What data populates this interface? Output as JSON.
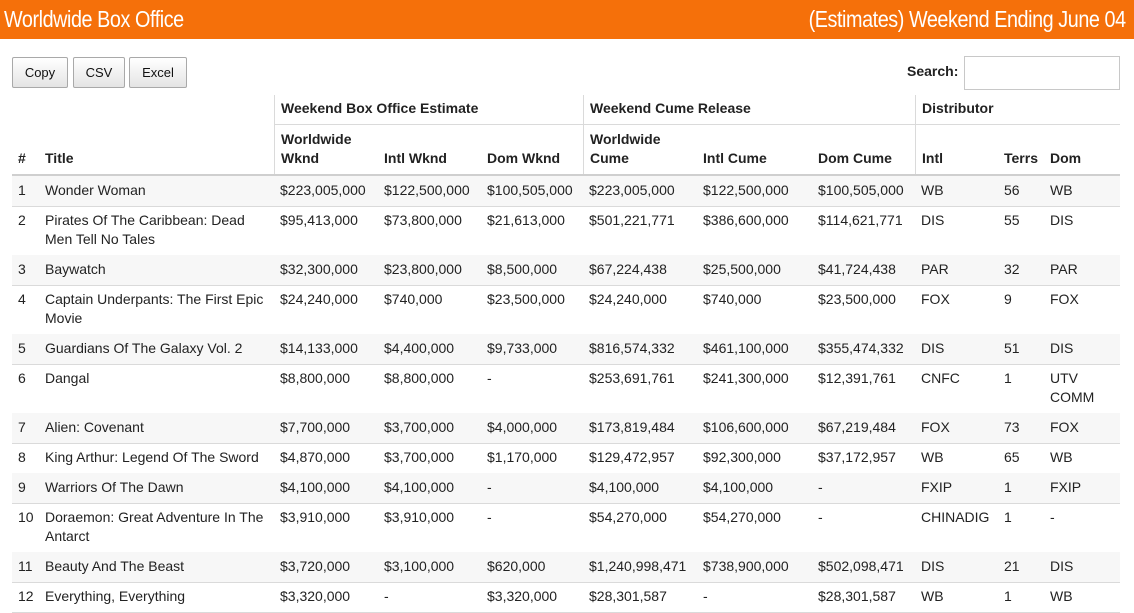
{
  "header": {
    "title": "Worldwide Box Office",
    "subtitle": "(Estimates) Weekend Ending June 04"
  },
  "toolbar": {
    "copy_label": "Copy",
    "csv_label": "CSV",
    "excel_label": "Excel",
    "search_label": "Search:",
    "search_value": ""
  },
  "table": {
    "groups": {
      "weekend": "Weekend Box Office Estimate",
      "cume": "Weekend Cume Release",
      "distributor": "Distributor"
    },
    "columns": {
      "num": "#",
      "title": "Title",
      "ww_wknd_1": "Worldwide",
      "ww_wknd_2": "Wknd",
      "intl_wknd": "Intl Wknd",
      "dom_wknd": "Dom Wknd",
      "ww_cume_1": "Worldwide",
      "ww_cume_2": "Cume",
      "intl_cume": "Intl Cume",
      "dom_cume": "Dom Cume",
      "intl": "Intl",
      "terrs": "Terrs",
      "dom": "Dom"
    },
    "rows": [
      {
        "num": "1",
        "title": [
          "Wonder Woman"
        ],
        "ww_wknd": "$223,005,000",
        "intl_wknd": "$122,500,000",
        "dom_wknd": "$100,505,000",
        "ww_cume": "$223,005,000",
        "intl_cume": "$122,500,000",
        "dom_cume": "$100,505,000",
        "intl": "WB",
        "terrs": "56",
        "dom": [
          "WB"
        ]
      },
      {
        "num": "2",
        "title": [
          "Pirates Of The Caribbean: Dead",
          "Men Tell No Tales"
        ],
        "ww_wknd": "$95,413,000",
        "intl_wknd": "$73,800,000",
        "dom_wknd": "$21,613,000",
        "ww_cume": "$501,221,771",
        "intl_cume": "$386,600,000",
        "dom_cume": "$114,621,771",
        "intl": "DIS",
        "terrs": "55",
        "dom": [
          "DIS"
        ]
      },
      {
        "num": "3",
        "title": [
          "Baywatch"
        ],
        "ww_wknd": "$32,300,000",
        "intl_wknd": "$23,800,000",
        "dom_wknd": "$8,500,000",
        "ww_cume": "$67,224,438",
        "intl_cume": "$25,500,000",
        "dom_cume": "$41,724,438",
        "intl": "PAR",
        "terrs": "32",
        "dom": [
          "PAR"
        ]
      },
      {
        "num": "4",
        "title": [
          "Captain Underpants: The First Epic",
          "Movie"
        ],
        "ww_wknd": "$24,240,000",
        "intl_wknd": "$740,000",
        "dom_wknd": "$23,500,000",
        "ww_cume": "$24,240,000",
        "intl_cume": "$740,000",
        "dom_cume": "$23,500,000",
        "intl": "FOX",
        "terrs": "9",
        "dom": [
          "FOX"
        ]
      },
      {
        "num": "5",
        "title": [
          "Guardians Of The Galaxy Vol. 2"
        ],
        "ww_wknd": "$14,133,000",
        "intl_wknd": "$4,400,000",
        "dom_wknd": "$9,733,000",
        "ww_cume": "$816,574,332",
        "intl_cume": "$461,100,000",
        "dom_cume": "$355,474,332",
        "intl": "DIS",
        "terrs": "51",
        "dom": [
          "DIS"
        ]
      },
      {
        "num": "6",
        "title": [
          "Dangal"
        ],
        "ww_wknd": "$8,800,000",
        "intl_wknd": "$8,800,000",
        "dom_wknd": "-",
        "ww_cume": "$253,691,761",
        "intl_cume": "$241,300,000",
        "dom_cume": "$12,391,761",
        "intl": "CNFC",
        "terrs": "1",
        "dom": [
          "UTV",
          "COMM"
        ]
      },
      {
        "num": "7",
        "title": [
          "Alien: Covenant"
        ],
        "ww_wknd": "$7,700,000",
        "intl_wknd": "$3,700,000",
        "dom_wknd": "$4,000,000",
        "ww_cume": "$173,819,484",
        "intl_cume": "$106,600,000",
        "dom_cume": "$67,219,484",
        "intl": "FOX",
        "terrs": "73",
        "dom": [
          "FOX"
        ]
      },
      {
        "num": "8",
        "title": [
          "King Arthur: Legend Of The Sword"
        ],
        "ww_wknd": "$4,870,000",
        "intl_wknd": "$3,700,000",
        "dom_wknd": "$1,170,000",
        "ww_cume": "$129,472,957",
        "intl_cume": "$92,300,000",
        "dom_cume": "$37,172,957",
        "intl": "WB",
        "terrs": "65",
        "dom": [
          "WB"
        ]
      },
      {
        "num": "9",
        "title": [
          "Warriors Of The Dawn"
        ],
        "ww_wknd": "$4,100,000",
        "intl_wknd": "$4,100,000",
        "dom_wknd": "-",
        "ww_cume": "$4,100,000",
        "intl_cume": "$4,100,000",
        "dom_cume": "-",
        "intl": "FXIP",
        "terrs": "1",
        "dom": [
          "FXIP"
        ]
      },
      {
        "num": "10",
        "title": [
          "Doraemon: Great Adventure In The",
          "Antarct"
        ],
        "ww_wknd": "$3,910,000",
        "intl_wknd": "$3,910,000",
        "dom_wknd": "-",
        "ww_cume": "$54,270,000",
        "intl_cume": "$54,270,000",
        "dom_cume": "-",
        "intl": "CHINADIG",
        "terrs": "1",
        "dom": [
          "-"
        ]
      },
      {
        "num": "11",
        "title": [
          "Beauty And The Beast"
        ],
        "ww_wknd": "$3,720,000",
        "intl_wknd": "$3,100,000",
        "dom_wknd": "$620,000",
        "ww_cume": "$1,240,998,471",
        "intl_cume": "$738,900,000",
        "dom_cume": "$502,098,471",
        "intl": "DIS",
        "terrs": "21",
        "dom": [
          "DIS"
        ]
      },
      {
        "num": "12",
        "title": [
          "Everything, Everything"
        ],
        "ww_wknd": "$3,320,000",
        "intl_wknd": "-",
        "dom_wknd": "$3,320,000",
        "ww_cume": "$28,301,587",
        "intl_cume": "-",
        "dom_cume": "$28,301,587",
        "intl": "WB",
        "terrs": "1",
        "dom": [
          "WB"
        ]
      }
    ]
  }
}
